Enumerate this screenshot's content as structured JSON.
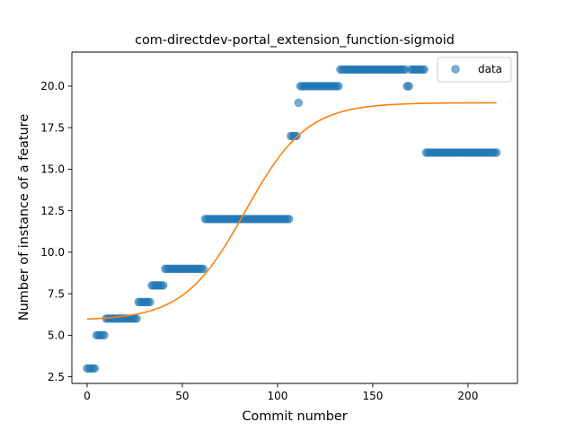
{
  "chart_data": {
    "type": "scatter",
    "title": "com-directdev-portal_extension_function-sigmoid",
    "xlabel": "Commit number",
    "ylabel": "Number of instance of a feature",
    "xlim": [
      -8,
      226
    ],
    "ylim": [
      2.1,
      22.05
    ],
    "xticks": [
      0,
      50,
      100,
      150,
      200
    ],
    "yticks": [
      2.5,
      5.0,
      7.5,
      10.0,
      12.5,
      15.0,
      17.5,
      20.0
    ],
    "xtick_labels": [
      "0",
      "50",
      "100",
      "150",
      "200"
    ],
    "ytick_labels": [
      "2.5",
      "5.0",
      "7.5",
      "10.0",
      "12.5",
      "15.0",
      "17.5",
      "20.0"
    ],
    "legend": {
      "position": "top-right",
      "entries": [
        "data"
      ]
    },
    "grid": false,
    "series": [
      {
        "name": "data",
        "kind": "scatter",
        "color": "#1f77b4",
        "segments": [
          {
            "x": [
              0,
              4
            ],
            "y": 3
          },
          {
            "x": [
              5,
              9
            ],
            "y": 5
          },
          {
            "x": [
              10,
              26
            ],
            "y": 6
          },
          {
            "x": [
              27,
              33
            ],
            "y": 7
          },
          {
            "x": [
              34,
              40
            ],
            "y": 8
          },
          {
            "x": [
              41,
              61
            ],
            "y": 9
          },
          {
            "x": [
              62,
              106
            ],
            "y": 12
          },
          {
            "x": [
              107,
              110
            ],
            "y": 17
          },
          {
            "x": [
              111,
              111
            ],
            "y": 19
          },
          {
            "x": [
              112,
              132
            ],
            "y": 20
          },
          {
            "x": [
              133,
              167
            ],
            "y": 21
          },
          {
            "x": [
              168,
              169
            ],
            "y": 20
          },
          {
            "x": [
              170,
              177
            ],
            "y": 21
          },
          {
            "x": [
              178,
              215
            ],
            "y": 16
          }
        ]
      },
      {
        "kind": "line",
        "color": "#ff7f0e",
        "model": "sigmoid",
        "params": {
          "L": 13.1,
          "k": 0.062,
          "x0": 83,
          "b": 5.9
        },
        "x_range": [
          0,
          215
        ]
      }
    ]
  }
}
